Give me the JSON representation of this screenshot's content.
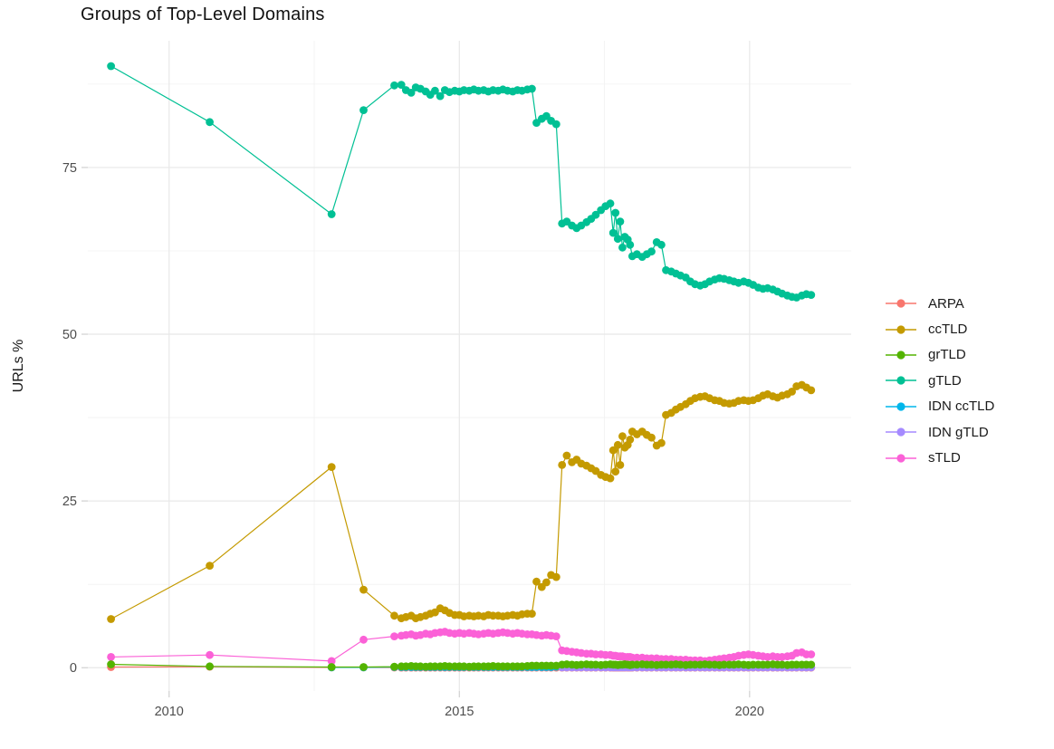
{
  "chart_data": {
    "type": "line",
    "title": "Groups of Top-Level Domains",
    "xlabel": "",
    "ylabel": "URLs %",
    "grid": true,
    "legend_position": "right",
    "x_axis": {
      "ticks": [
        2010,
        2015,
        2020
      ],
      "tick_labels": [
        "2010",
        "2015",
        "2020"
      ],
      "minor_ticks": [
        2012.5,
        2017.5
      ],
      "lim": [
        2008.6,
        2021.75
      ]
    },
    "y_axis": {
      "ticks": [
        0,
        25,
        50,
        75
      ],
      "tick_labels": [
        "0",
        "25",
        "50",
        "75"
      ],
      "minor_ticks": [
        12.5,
        37.5,
        62.5,
        87.5
      ],
      "lim": [
        -3.5,
        94
      ]
    },
    "x": [
      2009.0,
      2010.7,
      2012.8,
      2013.35,
      2013.88,
      2014.0,
      2014.08,
      2014.17,
      2014.25,
      2014.33,
      2014.42,
      2014.5,
      2014.58,
      2014.67,
      2014.75,
      2014.83,
      2014.92,
      2015.0,
      2015.08,
      2015.17,
      2015.25,
      2015.33,
      2015.42,
      2015.5,
      2015.58,
      2015.67,
      2015.75,
      2015.83,
      2015.92,
      2016.0,
      2016.08,
      2016.17,
      2016.25,
      2016.33,
      2016.42,
      2016.5,
      2016.58,
      2016.67,
      2016.77,
      2016.85,
      2016.94,
      2017.02,
      2017.1,
      2017.19,
      2017.27,
      2017.35,
      2017.44,
      2017.52,
      2017.6,
      2017.65,
      2017.69,
      2017.73,
      2017.77,
      2017.81,
      2017.85,
      2017.9,
      2017.94,
      2017.98,
      2018.06,
      2018.15,
      2018.23,
      2018.31,
      2018.4,
      2018.48,
      2018.56,
      2018.65,
      2018.73,
      2018.81,
      2018.9,
      2018.98,
      2019.06,
      2019.15,
      2019.23,
      2019.31,
      2019.4,
      2019.48,
      2019.56,
      2019.65,
      2019.73,
      2019.81,
      2019.9,
      2019.98,
      2020.06,
      2020.15,
      2020.23,
      2020.31,
      2020.4,
      2020.48,
      2020.56,
      2020.65,
      2020.73,
      2020.81,
      2020.9,
      2020.98,
      2021.06
    ],
    "draw_order": [
      "ARPA",
      "IDN ccTLD",
      "IDN gTLD",
      "sTLD",
      "ccTLD",
      "gTLD",
      "grTLD"
    ],
    "series": [
      {
        "name": "ARPA",
        "color": "#F8766D",
        "start_index": 0,
        "values": [
          0.1,
          0.15,
          0.05,
          0.05,
          0.03,
          0.02,
          0.02,
          0.02,
          0.02,
          0.02,
          0.02,
          0.02,
          0.02,
          0.02,
          0.02,
          0.02,
          0.02,
          0.02,
          0.02,
          0.02,
          0.02,
          0.02,
          0.02,
          0.02,
          0.02,
          0.02,
          0.02,
          0.02,
          0.02,
          0.02,
          0.02,
          0.02,
          0.02,
          0.02,
          0.02,
          0.02,
          0.02,
          0.02,
          0.02,
          0.02,
          0.02,
          0.02,
          0.02,
          0.02,
          0.02,
          0.02,
          0.02,
          0.02,
          0.02,
          0.02,
          0.02,
          0.02,
          0.02,
          0.02,
          0.02,
          0.02,
          0.02,
          0.02,
          0.02,
          0.02,
          0.02,
          0.02,
          0.02,
          0.02,
          0.02,
          0.02,
          0.02,
          0.02,
          0.02,
          0.02,
          0.02,
          0.02,
          0.02,
          0.02,
          0.02,
          0.02,
          0.02,
          0.02,
          0.02,
          0.02,
          0.02,
          0.02,
          0.02,
          0.02,
          0.02,
          0.02,
          0.02,
          0.02,
          0.02,
          0.02,
          0.02,
          0.02,
          0.02,
          0.02,
          0.02
        ]
      },
      {
        "name": "ccTLD",
        "color": "#C49A00",
        "start_index": 0,
        "values": [
          7.3,
          15.3,
          30.1,
          11.7,
          7.8,
          7.4,
          7.6,
          7.8,
          7.4,
          7.6,
          7.8,
          8.1,
          8.3,
          8.9,
          8.6,
          8.2,
          7.9,
          7.9,
          7.7,
          7.8,
          7.7,
          7.8,
          7.7,
          7.9,
          7.8,
          7.8,
          7.7,
          7.8,
          7.9,
          7.8,
          8.0,
          8.1,
          8.1,
          12.9,
          12.1,
          12.8,
          13.9,
          13.6,
          30.4,
          31.8,
          30.8,
          31.2,
          30.6,
          30.3,
          29.9,
          29.5,
          28.9,
          28.6,
          28.4,
          32.6,
          29.4,
          33.4,
          30.4,
          34.7,
          33.0,
          33.4,
          34.2,
          35.4,
          35.0,
          35.4,
          34.9,
          34.5,
          33.3,
          33.7,
          37.9,
          38.2,
          38.7,
          39.1,
          39.5,
          40.0,
          40.4,
          40.6,
          40.7,
          40.4,
          40.1,
          40.0,
          39.7,
          39.6,
          39.7,
          40.0,
          40.1,
          40.0,
          40.1,
          40.4,
          40.8,
          41.0,
          40.7,
          40.5,
          40.8,
          41.0,
          41.4,
          42.2,
          42.4,
          42.0,
          41.6
        ]
      },
      {
        "name": "grTLD",
        "color": "#53B400",
        "start_index": 0,
        "values": [
          0.5,
          0.2,
          0.1,
          0.1,
          0.15,
          0.2,
          0.2,
          0.25,
          0.2,
          0.2,
          0.15,
          0.2,
          0.2,
          0.2,
          0.25,
          0.2,
          0.2,
          0.2,
          0.2,
          0.15,
          0.2,
          0.2,
          0.2,
          0.2,
          0.25,
          0.2,
          0.2,
          0.2,
          0.2,
          0.2,
          0.2,
          0.25,
          0.3,
          0.3,
          0.3,
          0.3,
          0.3,
          0.3,
          0.45,
          0.5,
          0.45,
          0.4,
          0.45,
          0.5,
          0.45,
          0.45,
          0.4,
          0.45,
          0.5,
          0.45,
          0.45,
          0.4,
          0.45,
          0.45,
          0.5,
          0.45,
          0.4,
          0.45,
          0.45,
          0.5,
          0.45,
          0.45,
          0.4,
          0.45,
          0.45,
          0.45,
          0.5,
          0.45,
          0.4,
          0.45,
          0.45,
          0.45,
          0.5,
          0.45,
          0.45,
          0.4,
          0.45,
          0.45,
          0.45,
          0.5,
          0.45,
          0.4,
          0.45,
          0.45,
          0.45,
          0.45,
          0.5,
          0.45,
          0.45,
          0.4,
          0.45,
          0.45,
          0.45,
          0.45,
          0.45
        ]
      },
      {
        "name": "gTLD",
        "color": "#00C094",
        "start_index": 0,
        "values": [
          90.2,
          81.8,
          68.0,
          83.6,
          87.3,
          87.4,
          86.6,
          86.2,
          87.0,
          86.8,
          86.4,
          85.9,
          86.5,
          85.7,
          86.6,
          86.3,
          86.5,
          86.4,
          86.6,
          86.5,
          86.7,
          86.5,
          86.6,
          86.4,
          86.6,
          86.5,
          86.7,
          86.5,
          86.4,
          86.6,
          86.5,
          86.7,
          86.8,
          81.7,
          82.3,
          82.7,
          82.0,
          81.5,
          66.6,
          66.9,
          66.3,
          65.9,
          66.3,
          66.8,
          67.3,
          67.9,
          68.6,
          69.2,
          69.6,
          65.2,
          68.2,
          64.3,
          66.9,
          63.0,
          64.6,
          64.2,
          63.4,
          61.7,
          62.0,
          61.6,
          62.0,
          62.4,
          63.8,
          63.4,
          59.6,
          59.4,
          59.1,
          58.8,
          58.5,
          57.9,
          57.5,
          57.3,
          57.5,
          57.9,
          58.2,
          58.4,
          58.3,
          58.1,
          57.9,
          57.7,
          57.9,
          57.7,
          57.4,
          57.0,
          56.8,
          56.9,
          56.7,
          56.4,
          56.1,
          55.8,
          55.6,
          55.5,
          55.8,
          56.0,
          55.9
        ]
      },
      {
        "name": "IDN ccTLD",
        "color": "#00B6EB",
        "start_index": 2,
        "values": [
          0.05,
          0.05,
          0.1,
          0.1,
          0.1,
          0.1,
          0.1,
          0.1,
          0.1,
          0.1,
          0.1,
          0.1,
          0.1,
          0.1,
          0.1,
          0.1,
          0.1,
          0.1,
          0.1,
          0.1,
          0.1,
          0.1,
          0.1,
          0.1,
          0.1,
          0.1,
          0.1,
          0.1,
          0.1,
          0.1,
          0.1,
          0.1,
          0.1,
          0.1,
          0.1,
          0.15,
          0.15,
          0.15,
          0.15,
          0.15,
          0.15,
          0.15,
          0.15,
          0.15,
          0.15,
          0.15,
          0.15,
          0.15,
          0.15,
          0.15,
          0.15,
          0.15,
          0.15,
          0.15,
          0.15,
          0.15,
          0.15,
          0.15,
          0.15,
          0.15,
          0.15,
          0.15,
          0.15,
          0.15,
          0.15,
          0.15,
          0.15,
          0.15,
          0.15,
          0.15,
          0.15,
          0.15,
          0.15,
          0.15,
          0.15,
          0.15,
          0.15,
          0.15,
          0.15,
          0.15,
          0.15,
          0.15,
          0.15,
          0.15,
          0.15,
          0.15,
          0.15,
          0.15,
          0.15,
          0.15,
          0.15,
          0.15
        ]
      },
      {
        "name": "IDN gTLD",
        "color": "#A58AFF",
        "start_index": 38,
        "values": [
          0.05,
          0.05,
          0.05,
          0.05,
          0.05,
          0.05,
          0.05,
          0.05,
          0.05,
          0.05,
          0.05,
          0.05,
          0.05,
          0.05,
          0.05,
          0.05,
          0.05,
          0.05,
          0.05,
          0.05,
          0.05,
          0.05,
          0.05,
          0.05,
          0.05,
          0.05,
          0.05,
          0.05,
          0.05,
          0.05,
          0.05,
          0.05,
          0.05,
          0.05,
          0.05,
          0.05,
          0.05,
          0.05,
          0.05,
          0.05,
          0.05,
          0.05,
          0.05,
          0.05,
          0.05,
          0.05,
          0.05,
          0.05,
          0.05,
          0.05,
          0.05,
          0.05,
          0.05,
          0.05,
          0.05,
          0.05,
          0.05
        ]
      },
      {
        "name": "sTLD",
        "color": "#FB61D7",
        "start_index": 0,
        "values": [
          1.6,
          1.9,
          1.0,
          4.2,
          4.7,
          4.8,
          4.9,
          5.0,
          4.8,
          4.9,
          5.1,
          5.0,
          5.2,
          5.3,
          5.4,
          5.2,
          5.1,
          5.2,
          5.1,
          5.2,
          5.1,
          5.0,
          5.1,
          5.2,
          5.1,
          5.2,
          5.3,
          5.2,
          5.1,
          5.2,
          5.1,
          5.0,
          5.0,
          4.9,
          4.8,
          4.9,
          4.8,
          4.7,
          2.6,
          2.5,
          2.4,
          2.3,
          2.2,
          2.1,
          2.1,
          2.0,
          2.0,
          1.9,
          1.9,
          1.8,
          1.8,
          1.7,
          1.7,
          1.7,
          1.6,
          1.6,
          1.6,
          1.5,
          1.5,
          1.5,
          1.4,
          1.4,
          1.4,
          1.3,
          1.3,
          1.3,
          1.2,
          1.2,
          1.2,
          1.1,
          1.1,
          1.1,
          1.0,
          1.1,
          1.2,
          1.3,
          1.4,
          1.5,
          1.6,
          1.8,
          1.9,
          2.0,
          1.9,
          1.8,
          1.7,
          1.6,
          1.7,
          1.6,
          1.6,
          1.7,
          1.8,
          2.2,
          2.3,
          2.0,
          2.0
        ]
      }
    ],
    "style": {
      "grid_major_color": "#e8e8e8",
      "grid_minor_color": "#f1f1f1",
      "tick_mark_color": "#d0d0d0",
      "tick_label_color": "#4d4d4d",
      "point_radius": 4.4,
      "line_width": 1.2
    }
  }
}
